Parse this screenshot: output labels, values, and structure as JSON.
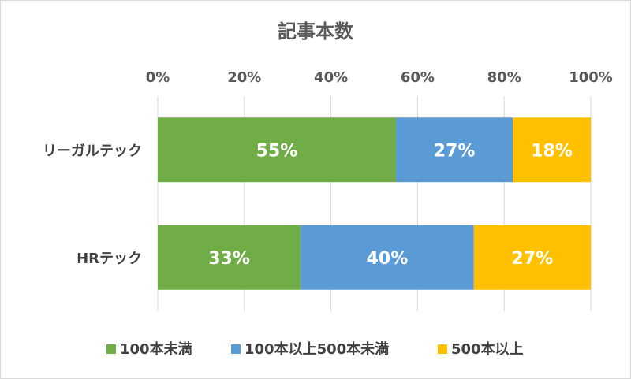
{
  "chart_data": {
    "type": "bar",
    "orientation": "horizontal",
    "stacked": "percent",
    "title": "記事本数",
    "categories": [
      "リーガルテック",
      "HRテック"
    ],
    "series": [
      {
        "name": "100本未満",
        "color": "#70ad47",
        "values": [
          55,
          33
        ],
        "labels": [
          "55%",
          "33%"
        ]
      },
      {
        "name": "100本以上500本未満",
        "color": "#5b9bd5",
        "values": [
          27,
          40
        ],
        "labels": [
          "27%",
          "40%"
        ]
      },
      {
        "name": "500本以上",
        "color": "#ffc000",
        "values": [
          18,
          27
        ],
        "labels": [
          "18%",
          "27%"
        ]
      }
    ],
    "xaxis": {
      "position": "top",
      "ticks": [
        "0%",
        "20%",
        "40%",
        "60%",
        "80%",
        "100%"
      ],
      "range": [
        0,
        100
      ]
    },
    "grid": true,
    "legend_position": "bottom"
  }
}
